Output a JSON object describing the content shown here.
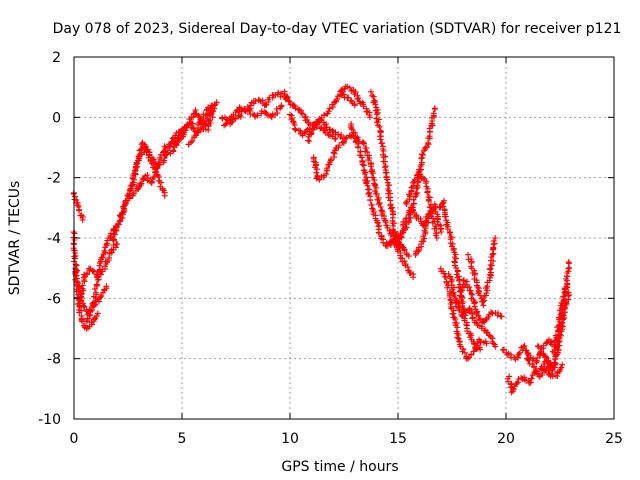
{
  "chart_data": {
    "type": "scatter",
    "title": "Day 078 of 2023, Sidereal Day-to-day VTEC variation (SDTVAR) for receiver p121",
    "xlabel": "GPS time / hours",
    "ylabel": "SDTVAR / TECUs",
    "xlim": [
      0,
      25
    ],
    "ylim": [
      -10,
      2
    ],
    "xticks": [
      0,
      5,
      10,
      15,
      20,
      25
    ],
    "yticks": [
      -10,
      -8,
      -6,
      -4,
      -2,
      0,
      2
    ],
    "grid": true,
    "marker": "+",
    "series": [
      {
        "name": "SDTVAR",
        "color": "#ff0000",
        "tracks": [
          {
            "x": [
              0.0,
              0.2,
              0.4
            ],
            "y": [
              -2.5,
              -3.0,
              -3.4
            ]
          },
          {
            "x": [
              0.0,
              0.1,
              0.3,
              0.5,
              0.7,
              0.9,
              1.1
            ],
            "y": [
              -3.8,
              -5.5,
              -6.5,
              -7.0,
              -7.0,
              -6.8,
              -6.5
            ]
          },
          {
            "x": [
              0.1,
              0.3,
              0.6,
              0.9,
              1.2,
              1.5
            ],
            "y": [
              -5.0,
              -6.0,
              -6.5,
              -6.3,
              -6.0,
              -5.6
            ]
          },
          {
            "x": [
              0.3,
              0.5,
              0.8,
              1.1,
              1.4,
              1.7,
              2.0
            ],
            "y": [
              -6.2,
              -5.2,
              -5.0,
              -5.3,
              -5.0,
              -4.5,
              -4.2
            ]
          },
          {
            "x": [
              0.6,
              0.9,
              1.2,
              1.5,
              1.8,
              2.1,
              2.4,
              2.7,
              3.0
            ],
            "y": [
              -6.8,
              -6.2,
              -5.0,
              -4.2,
              -3.8,
              -3.5,
              -2.8,
              -2.6,
              -2.3
            ]
          },
          {
            "x": [
              1.8,
              2.1,
              2.4,
              2.7,
              3.0,
              3.3,
              3.6,
              3.9,
              4.2
            ],
            "y": [
              -4.2,
              -3.4,
              -2.8,
              -2.2,
              -1.4,
              -1.0,
              -1.5,
              -2.0,
              -2.6
            ]
          },
          {
            "x": [
              2.6,
              2.9,
              3.2,
              3.5,
              3.8,
              4.1,
              4.4,
              4.7,
              5.0
            ],
            "y": [
              -2.5,
              -1.6,
              -0.8,
              -1.2,
              -1.6,
              -1.5,
              -1.0,
              -0.6,
              -0.4
            ]
          },
          {
            "x": [
              3.0,
              3.3,
              3.6,
              3.9,
              4.2,
              4.5,
              4.8,
              5.1
            ],
            "y": [
              -2.4,
              -1.9,
              -2.2,
              -1.6,
              -1.0,
              -0.9,
              -0.8,
              -0.5
            ]
          },
          {
            "x": [
              4.5,
              4.8,
              5.1,
              5.4,
              5.7,
              6.0,
              6.3,
              6.6
            ],
            "y": [
              -1.2,
              -0.8,
              -0.3,
              -0.2,
              -0.5,
              -0.3,
              0.2,
              0.5
            ]
          },
          {
            "x": [
              5.0,
              5.3,
              5.6,
              5.9,
              6.2,
              6.5
            ],
            "y": [
              -0.6,
              -0.2,
              0.2,
              -0.2,
              -0.4,
              0.3
            ]
          },
          {
            "x": [
              5.3,
              5.6,
              5.9,
              6.2,
              6.5
            ],
            "y": [
              -0.9,
              -0.6,
              -0.1,
              0.3,
              0.4
            ]
          },
          {
            "x": [
              6.8,
              7.1,
              7.4,
              7.7,
              8.0,
              8.3,
              8.6,
              8.9,
              9.2,
              9.5,
              9.8
            ],
            "y": [
              0.0,
              -0.1,
              0.1,
              0.3,
              0.2,
              0.5,
              0.6,
              0.4,
              0.7,
              0.8,
              0.6
            ]
          },
          {
            "x": [
              7.0,
              7.3,
              7.6,
              8.0,
              8.4,
              8.8,
              9.2,
              9.6
            ],
            "y": [
              -0.3,
              -0.1,
              0.0,
              0.3,
              0.0,
              0.2,
              0.0,
              0.4
            ]
          },
          {
            "x": [
              9.7,
              10.0,
              10.3,
              10.6,
              10.9,
              11.2,
              11.5,
              11.8,
              12.1
            ],
            "y": [
              0.8,
              0.5,
              0.3,
              0.1,
              -0.2,
              -0.3,
              -0.4,
              -0.6,
              -0.7
            ]
          },
          {
            "x": [
              10.0,
              10.3,
              10.6,
              10.9,
              11.2,
              11.5,
              11.8,
              12.1,
              12.4,
              12.7,
              13.0
            ],
            "y": [
              0.1,
              -0.4,
              -0.6,
              -0.4,
              -0.2,
              0.0,
              0.2,
              0.5,
              0.8,
              0.6,
              0.4
            ]
          },
          {
            "x": [
              10.8,
              11.1,
              11.4,
              11.7,
              12.0,
              12.3,
              12.6,
              12.9,
              13.2
            ],
            "y": [
              -0.8,
              -0.3,
              -0.1,
              -0.3,
              -0.5,
              -0.6,
              -0.7,
              -0.6,
              -0.8
            ]
          },
          {
            "x": [
              11.1,
              11.3,
              11.6,
              11.9,
              12.2,
              12.5
            ],
            "y": [
              -1.3,
              -2.1,
              -1.9,
              -1.4,
              -1.0,
              -0.8
            ]
          },
          {
            "x": [
              12.3,
              12.6,
              12.9,
              13.2,
              13.5,
              13.7
            ],
            "y": [
              0.9,
              1.0,
              0.9,
              0.6,
              0.3,
              0.0
            ]
          },
          {
            "x": [
              12.8,
              13.0,
              13.3,
              13.6,
              13.9,
              14.2,
              14.5,
              14.8,
              15.1,
              15.4,
              15.7
            ],
            "y": [
              -0.2,
              -0.6,
              -1.3,
              -2.3,
              -3.2,
              -3.9,
              -4.3,
              -4.1,
              -4.5,
              -5.0,
              -5.3
            ]
          },
          {
            "x": [
              13.4,
              13.7,
              14.0,
              14.3,
              14.6,
              14.9,
              15.2,
              15.5
            ],
            "y": [
              -0.8,
              -1.5,
              -2.5,
              -3.3,
              -3.8,
              -4.0,
              -4.3,
              -4.6
            ]
          },
          {
            "x": [
              13.8,
              14.0,
              14.2,
              14.5,
              14.8,
              15.0
            ],
            "y": [
              0.8,
              0.2,
              -0.6,
              -2.0,
              -3.6,
              -4.3
            ]
          },
          {
            "x": [
              14.6,
              14.9,
              15.2,
              15.5,
              15.8,
              16.1,
              16.4,
              16.7
            ],
            "y": [
              -4.2,
              -4.0,
              -3.8,
              -3.5,
              -2.6,
              -1.4,
              -0.8,
              0.3
            ]
          },
          {
            "x": [
              15.0,
              15.3,
              15.6,
              15.9,
              16.2,
              16.5
            ],
            "y": [
              -4.4,
              -3.5,
              -3.0,
              -3.3,
              -3.6,
              -3.1
            ]
          },
          {
            "x": [
              15.4,
              15.7,
              16.0,
              16.3,
              16.6,
              16.8
            ],
            "y": [
              -2.9,
              -2.2,
              -1.8,
              -2.2,
              -3.3,
              -4.0
            ]
          },
          {
            "x": [
              15.8,
              16.1,
              16.4,
              16.7,
              17.0
            ],
            "y": [
              -4.6,
              -4.2,
              -3.4,
              -2.9,
              -3.8
            ]
          },
          {
            "x": [
              16.9,
              17.1,
              17.3,
              17.6,
              17.9,
              18.2,
              18.5,
              18.8
            ],
            "y": [
              -3.0,
              -2.8,
              -3.6,
              -4.5,
              -5.8,
              -7.0,
              -7.5,
              -7.7
            ]
          },
          {
            "x": [
              17.0,
              17.3,
              17.6,
              17.9,
              18.2,
              18.5,
              18.8,
              19.1
            ],
            "y": [
              -5.0,
              -5.6,
              -6.6,
              -7.6,
              -8.0,
              -7.8,
              -7.4,
              -7.5
            ]
          },
          {
            "x": [
              17.4,
              17.7,
              18.0,
              18.3,
              18.6,
              18.9,
              19.2,
              19.5
            ],
            "y": [
              -5.2,
              -6.2,
              -6.6,
              -6.3,
              -6.8,
              -7.0,
              -7.2,
              -7.6
            ]
          },
          {
            "x": [
              17.8,
              18.1,
              18.4,
              18.7,
              19.0,
              19.3,
              19.6,
              19.8
            ],
            "y": [
              -6.3,
              -5.4,
              -5.9,
              -6.6,
              -6.8,
              -6.5,
              -6.5,
              -6.6
            ]
          },
          {
            "x": [
              18.3,
              18.6,
              18.9,
              19.2,
              19.5
            ],
            "y": [
              -4.6,
              -5.4,
              -6.2,
              -5.5,
              -4.0
            ]
          },
          {
            "x": [
              19.9,
              20.2,
              20.5,
              20.8,
              21.1,
              21.4,
              21.7,
              22.0,
              22.3
            ],
            "y": [
              -7.7,
              -7.9,
              -8.0,
              -7.6,
              -7.9,
              -8.1,
              -7.6,
              -7.4,
              -7.6
            ]
          },
          {
            "x": [
              20.1,
              20.3,
              20.5,
              20.8,
              21.1,
              21.4,
              21.7,
              22.0,
              22.3,
              22.6
            ],
            "y": [
              -8.6,
              -9.1,
              -8.8,
              -8.6,
              -8.8,
              -8.4,
              -8.3,
              -8.5,
              -8.6,
              -8.2
            ]
          },
          {
            "x": [
              21.0,
              21.3,
              21.6,
              21.9,
              22.2,
              22.5,
              22.7,
              22.9
            ],
            "y": [
              -8.0,
              -8.3,
              -8.6,
              -8.0,
              -8.4,
              -7.2,
              -6.4,
              -5.8
            ]
          },
          {
            "x": [
              21.5,
              21.8,
              22.1,
              22.4,
              22.6,
              22.8,
              22.9
            ],
            "y": [
              -7.6,
              -7.9,
              -8.5,
              -7.7,
              -6.6,
              -5.5,
              -4.8
            ]
          },
          {
            "x": [
              22.2,
              22.4,
              22.6,
              22.8
            ],
            "y": [
              -7.8,
              -7.0,
              -6.2,
              -5.6
            ]
          }
        ]
      }
    ]
  }
}
